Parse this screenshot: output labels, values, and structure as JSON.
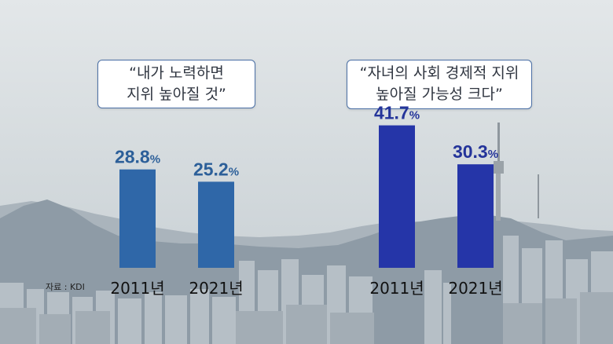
{
  "source_note": "자료 : KDI",
  "colors": {
    "left_bars": "#2f67a8",
    "right_bars": "#2535a8",
    "left_value": "#2c5f99",
    "right_value": "#24349a",
    "year_label": "#111111"
  },
  "chart_data": [
    {
      "type": "bar",
      "quote_lines": [
        "“내가 노력하면",
        "지위 높아질 것”"
      ],
      "categories": [
        "2011년",
        "2021년"
      ],
      "values": [
        28.8,
        25.2
      ],
      "value_labels": [
        "28.8",
        "25.2"
      ],
      "unit": "%"
    },
    {
      "type": "bar",
      "quote_lines": [
        "“자녀의 사회 경제적 지위",
        "높아질 가능성 크다”"
      ],
      "categories": [
        "2011년",
        "2021년"
      ],
      "values": [
        41.7,
        30.3
      ],
      "value_labels": [
        "41.7",
        "30.3"
      ],
      "unit": "%"
    }
  ]
}
